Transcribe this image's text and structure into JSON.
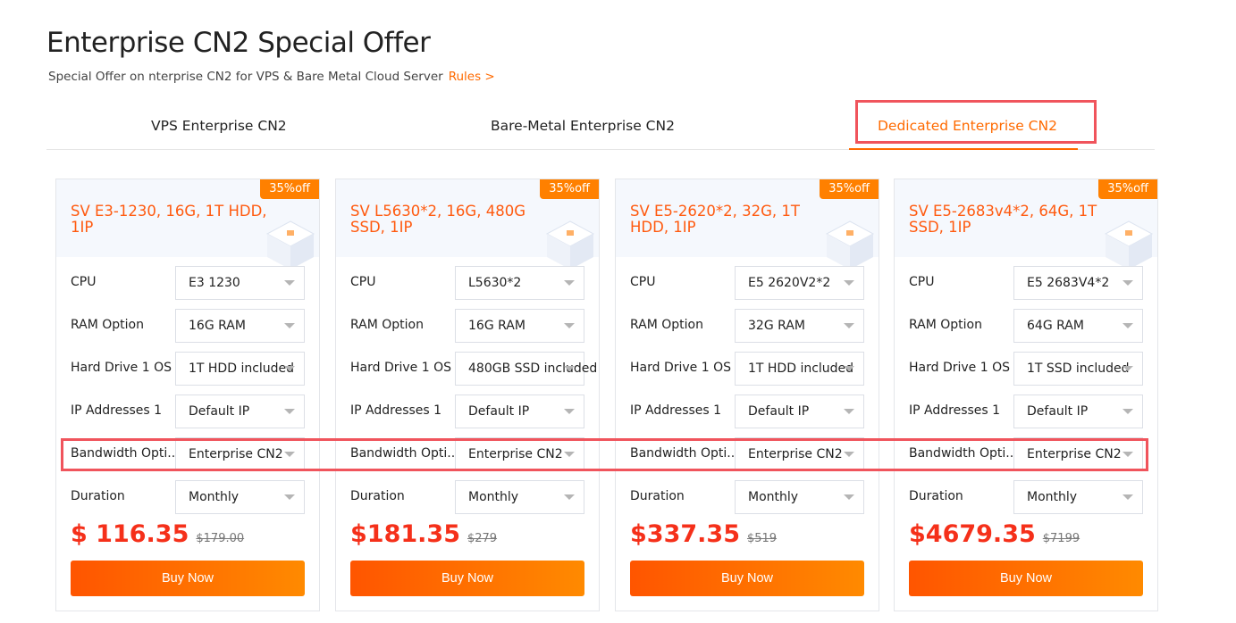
{
  "header": {
    "title": "Enterprise CN2 Special Offer",
    "subtitle": "Special Offer on nterprise CN2 for VPS & Bare Metal Cloud Server",
    "rules_link": "Rules >"
  },
  "tabs": [
    {
      "label": "VPS Enterprise CN2"
    },
    {
      "label": "Bare-Metal Enterprise CN2"
    },
    {
      "label": "Dedicated Enterprise CN2",
      "active": true
    }
  ],
  "accent_color": "#ff6a00",
  "labels": {
    "cpu": "CPU",
    "ram": "RAM Option",
    "hdd": "Hard Drive 1 OS",
    "ip": "IP Addresses 1",
    "bw": "Bandwidth Opti...",
    "dur": "Duration",
    "buy": "Buy Now"
  },
  "cards": [
    {
      "badge": "35%off",
      "title": "SV E3-1230, 16G, 1T HDD, 1IP",
      "cpu": "E3 1230",
      "ram": "16G RAM",
      "hdd": "1T HDD  included",
      "ip": "Default IP",
      "bw": "Enterprise CN2",
      "dur": "Monthly",
      "price": "$ 116.35",
      "old": "$179.00"
    },
    {
      "badge": "35%off",
      "title": "SV L5630*2, 16G, 480G SSD, 1IP",
      "cpu": "L5630*2",
      "ram": "16G RAM",
      "hdd": "480GB SSD  included",
      "ip": "Default IP",
      "bw": "Enterprise CN2",
      "dur": "Monthly",
      "price": "$181.35",
      "old": "$279"
    },
    {
      "badge": "35%off",
      "title": "SV E5-2620*2, 32G, 1T HDD, 1IP",
      "cpu": "E5 2620V2*2",
      "ram": "32G RAM",
      "hdd": "1T HDD  included",
      "ip": "Default IP",
      "bw": "Enterprise CN2",
      "dur": "Monthly",
      "price": "$337.35",
      "old": "$519"
    },
    {
      "badge": "35%off",
      "title": "SV E5-2683v4*2, 64G, 1T SSD, 1IP",
      "cpu": "E5 2683V4*2",
      "ram": "64G RAM",
      "hdd": "1T SSD  included",
      "ip": "Default IP",
      "bw": "Enterprise CN2",
      "dur": "Monthly",
      "price": "$4679.35",
      "old": "$7199"
    }
  ]
}
